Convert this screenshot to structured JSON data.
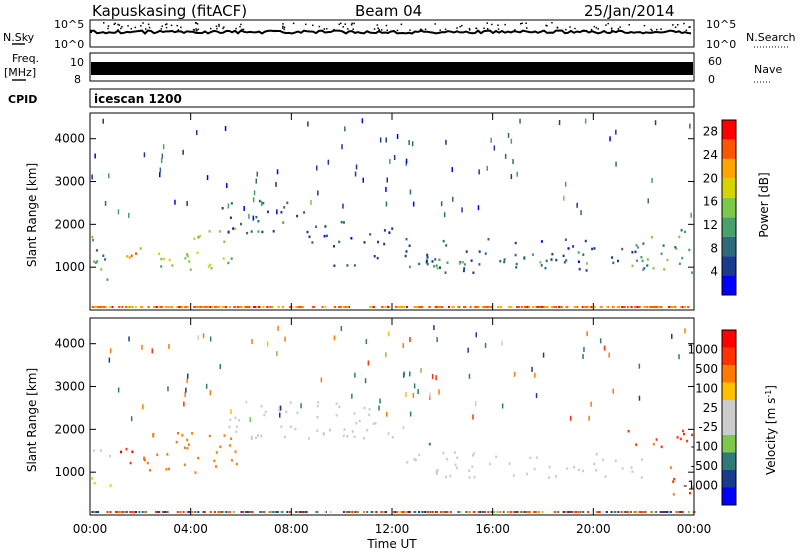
{
  "header": {
    "title": "Kapuskasing (fitACF)",
    "beam": "Beam 04",
    "date": "25/Jan/2014"
  },
  "noise_panel": {
    "left_label": "N.Sky",
    "right_label": "N.Search",
    "tick_top": "10^5",
    "tick_bottom": "10^0"
  },
  "freq_panel": {
    "left_label_1": "Freq.",
    "left_label_2": "[MHz]",
    "right_label": "Nave",
    "left_ticks": [
      "10",
      "8"
    ],
    "right_ticks": [
      "60",
      "0"
    ]
  },
  "cpid_panel": {
    "label": "CPID",
    "value": "icescan 1200"
  },
  "colors": {
    "power_scale": [
      "#0000ff",
      "#1a3a8c",
      "#2e6b7a",
      "#4aa06a",
      "#7cc84b",
      "#d6d400",
      "#ffa500",
      "#ff5500",
      "#ff0000"
    ],
    "velocity_scale": [
      "#ff0000",
      "#ff3300",
      "#ff7a00",
      "#ffc000",
      "#cccccc",
      "#cccccc",
      "#7bc84b",
      "#2e7a7a",
      "#1a3a8c",
      "#0000ff"
    ]
  },
  "chart_data": [
    {
      "type": "heatmap",
      "panel": "power",
      "ylabel": "Slant Range [km]",
      "ylim": [
        0,
        4600
      ],
      "y_ticks": [
        1000,
        2000,
        3000,
        4000
      ],
      "xlim": [
        0,
        24
      ],
      "x_ticks": [
        "00:00",
        "04:00",
        "08:00",
        "12:00",
        "16:00",
        "20:00",
        "00:00"
      ],
      "colorbar": {
        "label": "Power [dB]",
        "ticks": [
          4,
          8,
          12,
          16,
          20,
          24,
          28
        ],
        "range": [
          0,
          30
        ]
      },
      "regions": [
        {
          "t0": 0.0,
          "t1": 1.0,
          "r0": 650,
          "r1": 1800,
          "value": 12
        },
        {
          "t0": 1.0,
          "t1": 1.8,
          "r0": 1100,
          "r1": 1650,
          "value": 26
        },
        {
          "t0": 1.8,
          "t1": 4.0,
          "r0": 1000,
          "r1": 1500,
          "value": 17
        },
        {
          "t0": 3.8,
          "t1": 5.8,
          "r0": 950,
          "r1": 2000,
          "value": 16
        },
        {
          "t0": 5.2,
          "t1": 8.5,
          "r0": 1800,
          "r1": 2600,
          "value": 7
        },
        {
          "t0": 8.5,
          "t1": 12.0,
          "r0": 1500,
          "r1": 2150,
          "value": 7
        },
        {
          "t0": 9.5,
          "t1": 11.5,
          "r0": 1000,
          "r1": 1300,
          "value": 7
        },
        {
          "t0": 12.5,
          "t1": 22.0,
          "r0": 900,
          "r1": 1700,
          "value": 7
        },
        {
          "t0": 12.5,
          "t1": 22.0,
          "r0": 1000,
          "r1": 1200,
          "value": 13
        },
        {
          "t0": 21.5,
          "t1": 24.0,
          "r0": 900,
          "r1": 1900,
          "value": 13
        }
      ]
    },
    {
      "type": "heatmap",
      "panel": "velocity",
      "ylabel": "Slant Range [km]",
      "xlabel": "Time UT",
      "ylim": [
        0,
        4600
      ],
      "y_ticks": [
        1000,
        2000,
        3000,
        4000
      ],
      "xlim": [
        0,
        24
      ],
      "x_ticks": [
        "00:00",
        "04:00",
        "08:00",
        "12:00",
        "16:00",
        "20:00",
        "00:00"
      ],
      "colorbar": {
        "label": "Velocity [m s^-1]",
        "ticks": [
          "-1000",
          "-500",
          "-100",
          "-25",
          "25",
          "100",
          "500",
          "1000"
        ]
      },
      "regions": [
        {
          "t0": 0.0,
          "t1": 1.0,
          "r0": 700,
          "r1": 1100,
          "value": -60
        },
        {
          "t0": 0.0,
          "t1": 1.0,
          "r0": 1300,
          "r1": 1600,
          "value": 0
        },
        {
          "t0": 1.0,
          "t1": 2.2,
          "r0": 1200,
          "r1": 1700,
          "value": -1200
        },
        {
          "t0": 2.0,
          "t1": 5.8,
          "r0": 1000,
          "r1": 2000,
          "value": -300
        },
        {
          "t0": 5.5,
          "t1": 12.5,
          "r0": 1800,
          "r1": 2700,
          "value": 0
        },
        {
          "t0": 12.5,
          "t1": 22.0,
          "r0": 900,
          "r1": 1500,
          "value": 0
        },
        {
          "t0": 12.8,
          "t1": 13.6,
          "r0": 1600,
          "r1": 1800,
          "value": 150
        },
        {
          "t0": 21.3,
          "t1": 24.0,
          "r0": 1500,
          "r1": 2000,
          "value": -600
        },
        {
          "t0": 23.0,
          "t1": 24.0,
          "r0": 500,
          "r1": 1200,
          "value": -600
        }
      ]
    }
  ],
  "x_axis_title": "Time UT"
}
